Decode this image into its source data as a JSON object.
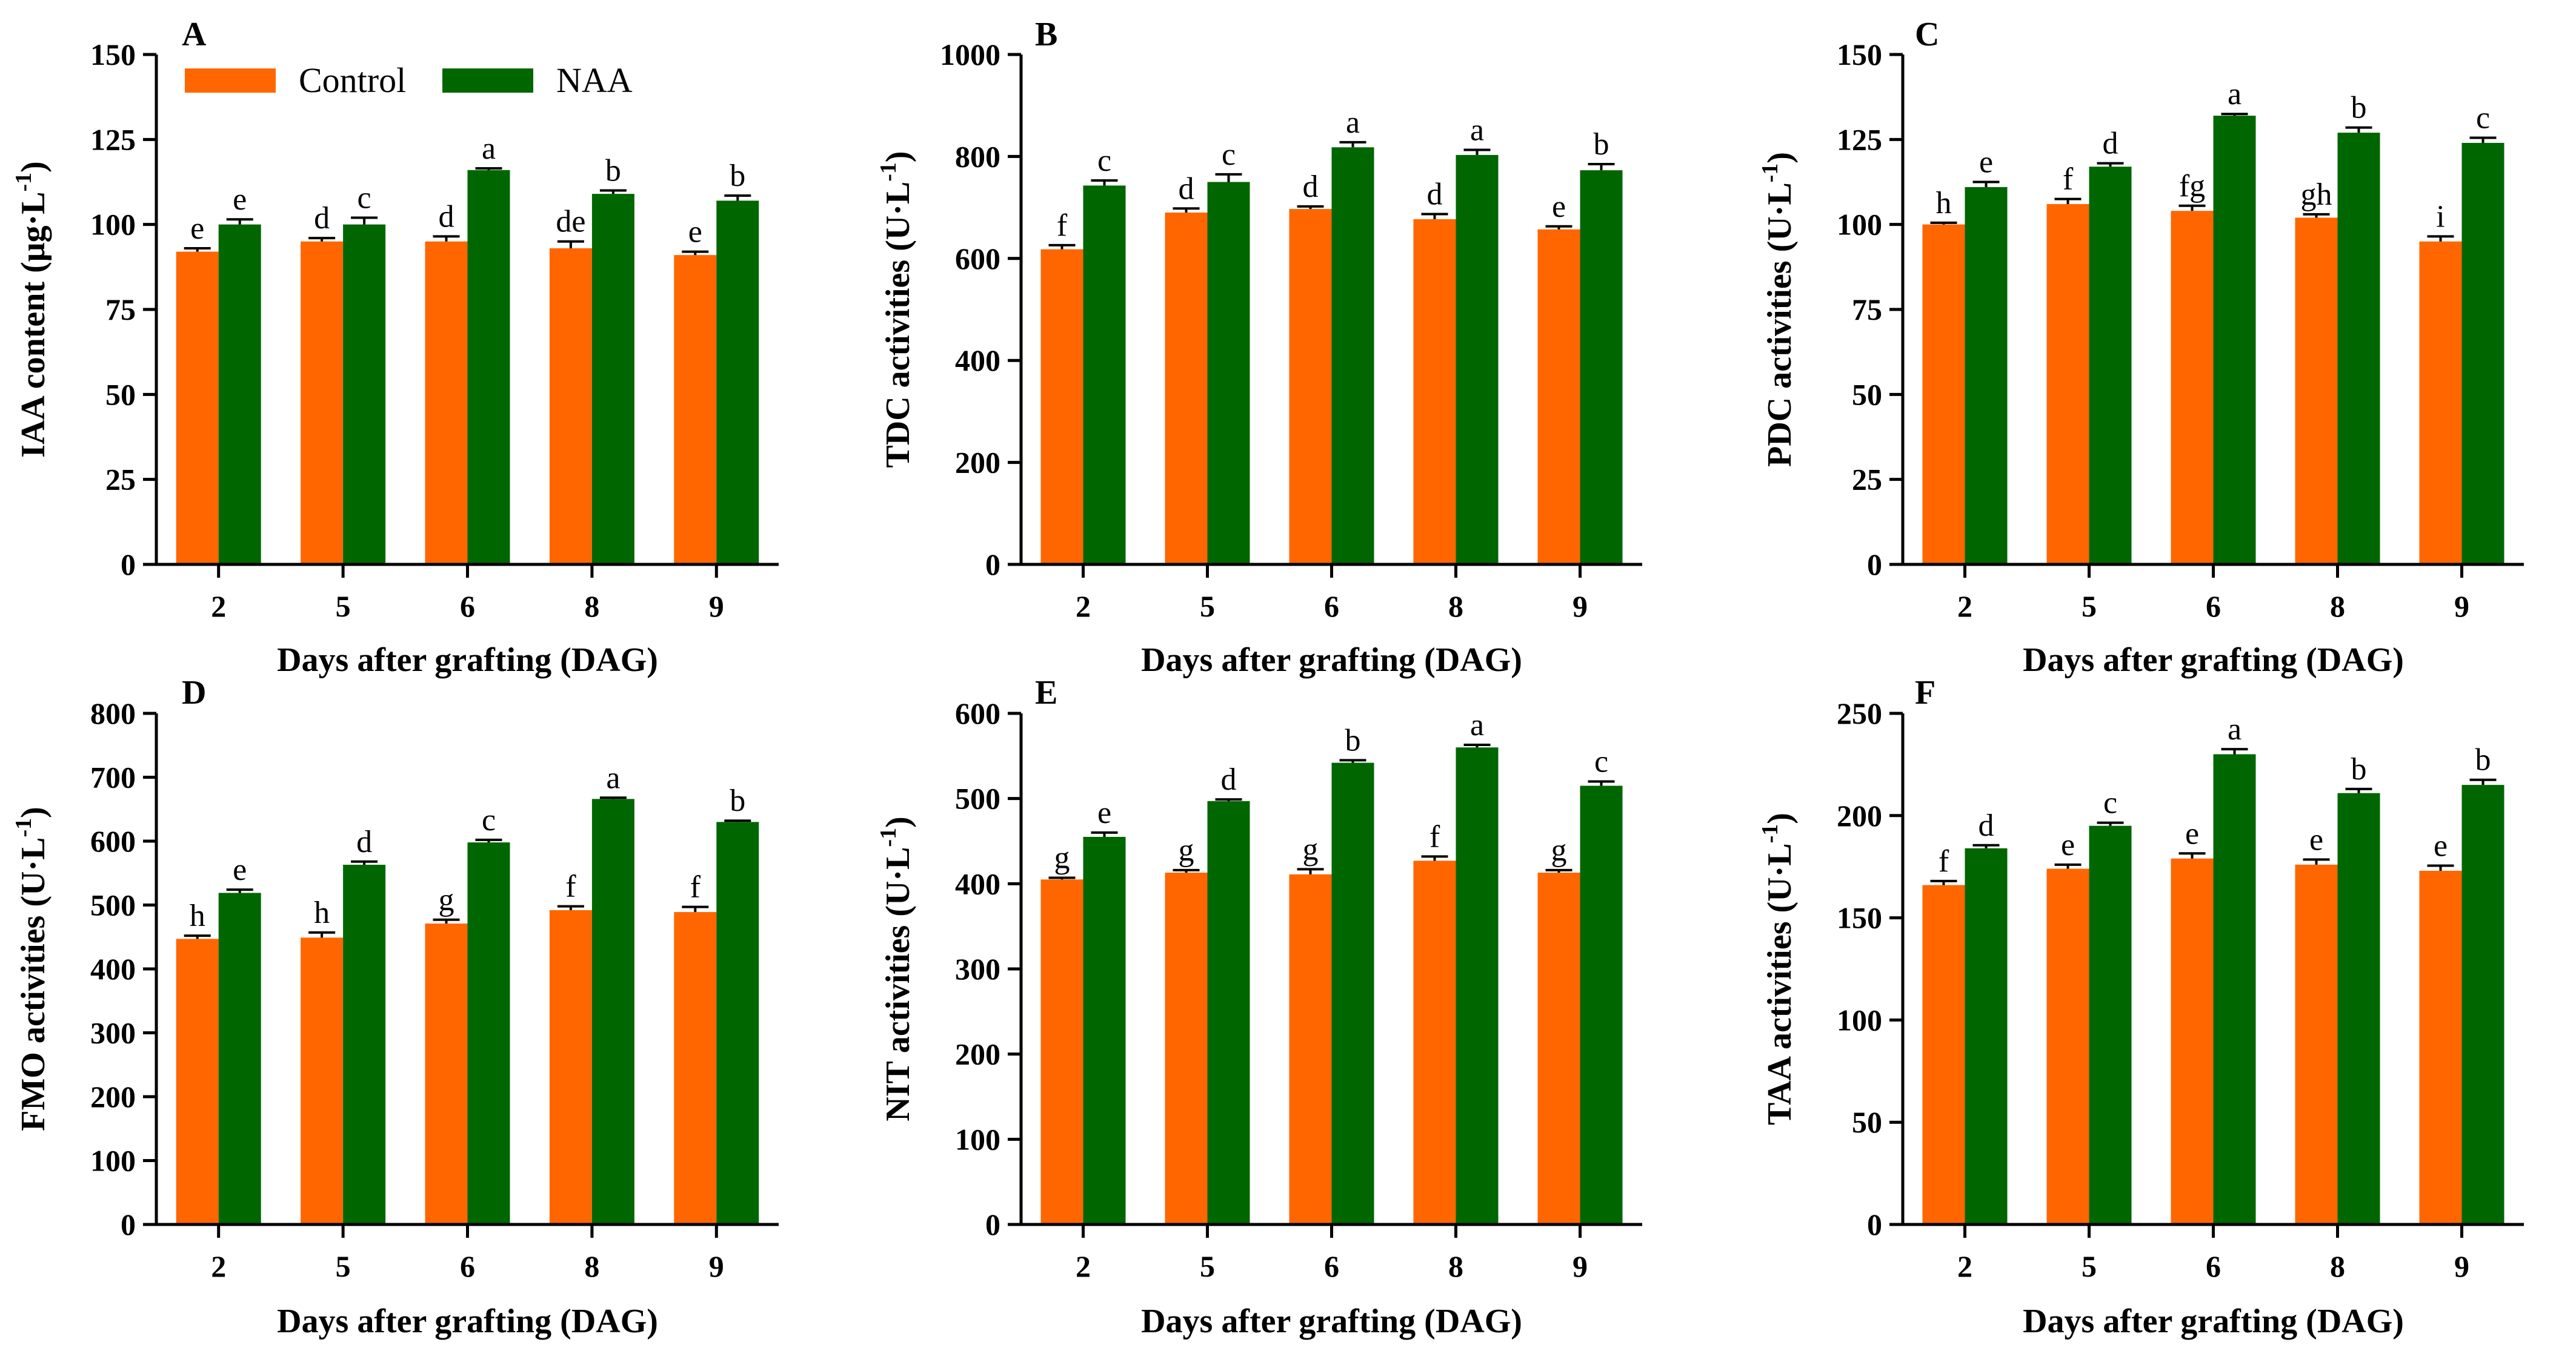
{
  "chart_data": [
    {
      "type": "bar",
      "panel_label": "A",
      "categories": [
        "2",
        "5",
        "6",
        "8",
        "9"
      ],
      "xlabel": "Days after grafting (DAG)",
      "ylabel": "IAA content (μg·L",
      "ylabel_sup": "-1",
      "ylabel_close": ")",
      "ylim": [
        0,
        150
      ],
      "yticks": [
        "0",
        "25",
        "50",
        "75",
        "100",
        "125",
        "150"
      ],
      "legend": {
        "position": "top-left",
        "entries": [
          "Control",
          "NAA"
        ]
      },
      "series": [
        {
          "name": "Control",
          "color": "#ff6600",
          "values": [
            92,
            95,
            95,
            93,
            91
          ],
          "errors": [
            1,
            1,
            1.5,
            2,
            1
          ],
          "letters": [
            "e",
            "d",
            "d",
            "de",
            "e"
          ]
        },
        {
          "name": "NAA",
          "color": "#006600",
          "values": [
            100,
            100,
            116,
            109,
            107
          ],
          "errors": [
            1.5,
            2,
            0.5,
            1,
            1.5
          ],
          "letters": [
            "e",
            "c",
            "a",
            "b",
            "b"
          ]
        }
      ]
    },
    {
      "type": "bar",
      "panel_label": "B",
      "categories": [
        "2",
        "5",
        "6",
        "8",
        "9"
      ],
      "xlabel": "Days after grafting (DAG)",
      "ylabel": "TDC activities (U·L",
      "ylabel_sup": "-1",
      "ylabel_close": ")",
      "ylim": [
        0,
        1000
      ],
      "yticks": [
        "0",
        "200",
        "400",
        "600",
        "800",
        "1000"
      ],
      "series": [
        {
          "name": "Control",
          "color": "#ff6600",
          "values": [
            618,
            690,
            697,
            677,
            657
          ],
          "errors": [
            8,
            8,
            5,
            10,
            6
          ],
          "letters": [
            "f",
            "d",
            "d",
            "d",
            "e"
          ]
        },
        {
          "name": "NAA",
          "color": "#006600",
          "values": [
            743,
            750,
            818,
            803,
            773
          ],
          "errors": [
            10,
            15,
            10,
            10,
            12
          ],
          "letters": [
            "c",
            "c",
            "a",
            "a",
            "b"
          ]
        }
      ]
    },
    {
      "type": "bar",
      "panel_label": "C",
      "categories": [
        "2",
        "5",
        "6",
        "8",
        "9"
      ],
      "xlabel": "Days after grafting (DAG)",
      "ylabel": "PDC activities (U·L",
      "ylabel_sup": "-1",
      "ylabel_close": ")",
      "ylim": [
        0,
        150
      ],
      "yticks": [
        "0",
        "25",
        "50",
        "75",
        "100",
        "125",
        "150"
      ],
      "series": [
        {
          "name": "Control",
          "color": "#ff6600",
          "values": [
            100,
            106,
            104,
            102,
            95
          ],
          "errors": [
            0.5,
            1.5,
            1.5,
            1,
            1.5
          ],
          "letters": [
            "h",
            "f",
            "fg",
            "gh",
            "i"
          ]
        },
        {
          "name": "NAA",
          "color": "#006600",
          "values": [
            111,
            117,
            132,
            127,
            124
          ],
          "errors": [
            1.5,
            1,
            0.5,
            1.5,
            1.5
          ],
          "letters": [
            "e",
            "d",
            "a",
            "b",
            "c"
          ]
        }
      ]
    },
    {
      "type": "bar",
      "panel_label": "D",
      "categories": [
        "2",
        "5",
        "6",
        "8",
        "9"
      ],
      "xlabel": "Days after grafting (DAG)",
      "ylabel": "FMO activities (U·L",
      "ylabel_sup": "-1",
      "ylabel_close": ")",
      "ylim": [
        0,
        800
      ],
      "yticks": [
        "0",
        "100",
        "200",
        "300",
        "400",
        "500",
        "600",
        "700",
        "800"
      ],
      "series": [
        {
          "name": "Control",
          "color": "#ff6600",
          "values": [
            447,
            449,
            471,
            492,
            489
          ],
          "errors": [
            5,
            8,
            6,
            6,
            8
          ],
          "letters": [
            "h",
            "h",
            "g",
            "f",
            "f"
          ]
        },
        {
          "name": "NAA",
          "color": "#006600",
          "values": [
            519,
            563,
            598,
            666,
            630
          ],
          "errors": [
            5,
            5,
            4,
            2,
            2
          ],
          "letters": [
            "e",
            "d",
            "c",
            "a",
            "b"
          ]
        }
      ]
    },
    {
      "type": "bar",
      "panel_label": "E",
      "categories": [
        "2",
        "5",
        "6",
        "8",
        "9"
      ],
      "xlabel": "Days after grafting (DAG)",
      "ylabel": "NIT activities (U·L",
      "ylabel_sup": "-1",
      "ylabel_close": ")",
      "ylim": [
        0,
        600
      ],
      "yticks": [
        "0",
        "100",
        "200",
        "300",
        "400",
        "500",
        "600"
      ],
      "series": [
        {
          "name": "Control",
          "color": "#ff6600",
          "values": [
            405,
            413,
            411,
            427,
            413
          ],
          "errors": [
            2,
            3,
            6,
            5,
            3
          ],
          "letters": [
            "g",
            "g",
            "g",
            "f",
            "g"
          ]
        },
        {
          "name": "NAA",
          "color": "#006600",
          "values": [
            455,
            497,
            542,
            560,
            515
          ],
          "errors": [
            5,
            2,
            3,
            3,
            5
          ],
          "letters": [
            "e",
            "d",
            "b",
            "a",
            "c"
          ]
        }
      ]
    },
    {
      "type": "bar",
      "panel_label": "F",
      "categories": [
        "2",
        "5",
        "6",
        "8",
        "9"
      ],
      "xlabel": "Days after grafting (DAG)",
      "ylabel": "TAA activities (U·L",
      "ylabel_sup": "-1",
      "ylabel_close": ")",
      "ylim": [
        0,
        250
      ],
      "yticks": [
        "0",
        "50",
        "100",
        "150",
        "200",
        "250"
      ],
      "series": [
        {
          "name": "Control",
          "color": "#ff6600",
          "values": [
            166,
            174,
            179,
            176,
            173
          ],
          "errors": [
            2,
            2,
            2.5,
            2.5,
            2.5
          ],
          "letters": [
            "f",
            "e",
            "e",
            "e",
            "e"
          ]
        },
        {
          "name": "NAA",
          "color": "#006600",
          "values": [
            184,
            195,
            230,
            211,
            215
          ],
          "errors": [
            1.5,
            1.5,
            2.5,
            2,
            2.5
          ],
          "letters": [
            "d",
            "c",
            "a",
            "b",
            "b"
          ]
        }
      ]
    }
  ]
}
